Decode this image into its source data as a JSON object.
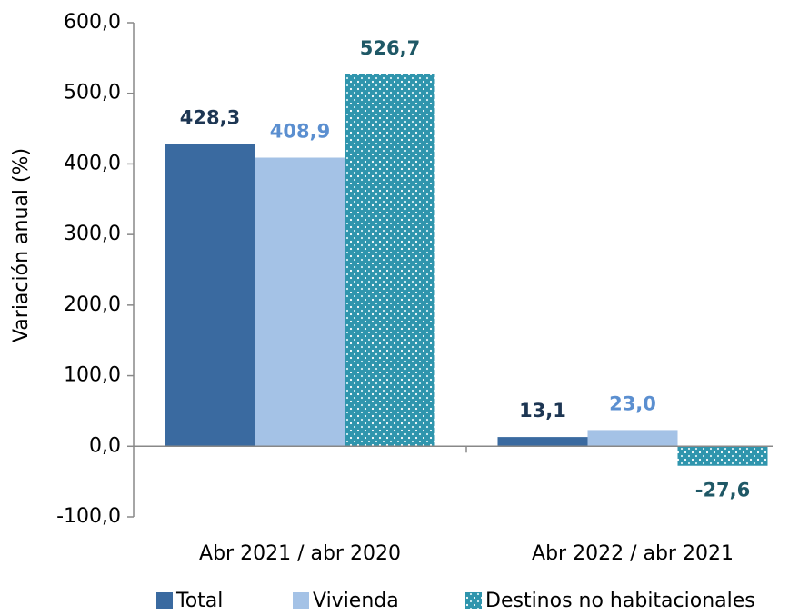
{
  "chart_data": {
    "type": "bar",
    "y_axis_label": "Variación anual (%)",
    "categories": [
      "Abr 2021 / abr 2020",
      "Abr 2022 / abr 2021"
    ],
    "series": [
      {
        "name": "Total",
        "color": "#3a6aa0",
        "label_color": "#1d3653",
        "values": [
          428.3,
          13.1
        ],
        "value_labels": [
          "428,3",
          "13,1"
        ]
      },
      {
        "name": "Vivienda",
        "color": "#a4c2e6",
        "label_color": "#5b8fd0",
        "values": [
          408.9,
          23.0
        ],
        "value_labels": [
          "408,9",
          "23,0"
        ]
      },
      {
        "name": "Destinos no habitacionales",
        "color": "#2f95ad",
        "label_color": "#1f5866",
        "pattern": "dots",
        "values": [
          526.7,
          -27.6
        ],
        "value_labels": [
          "526,7",
          "-27,6"
        ]
      }
    ],
    "ylim": [
      -100,
      600
    ],
    "yticks": [
      {
        "value": -100,
        "label": "-100,0"
      },
      {
        "value": 0,
        "label": "0,0"
      },
      {
        "value": 100,
        "label": "100,0"
      },
      {
        "value": 200,
        "label": "200,0"
      },
      {
        "value": 300,
        "label": "300,0"
      },
      {
        "value": 400,
        "label": "400,0"
      },
      {
        "value": 500,
        "label": "500,0"
      },
      {
        "value": 600,
        "label": "600,0"
      }
    ],
    "legend": "bottom"
  }
}
